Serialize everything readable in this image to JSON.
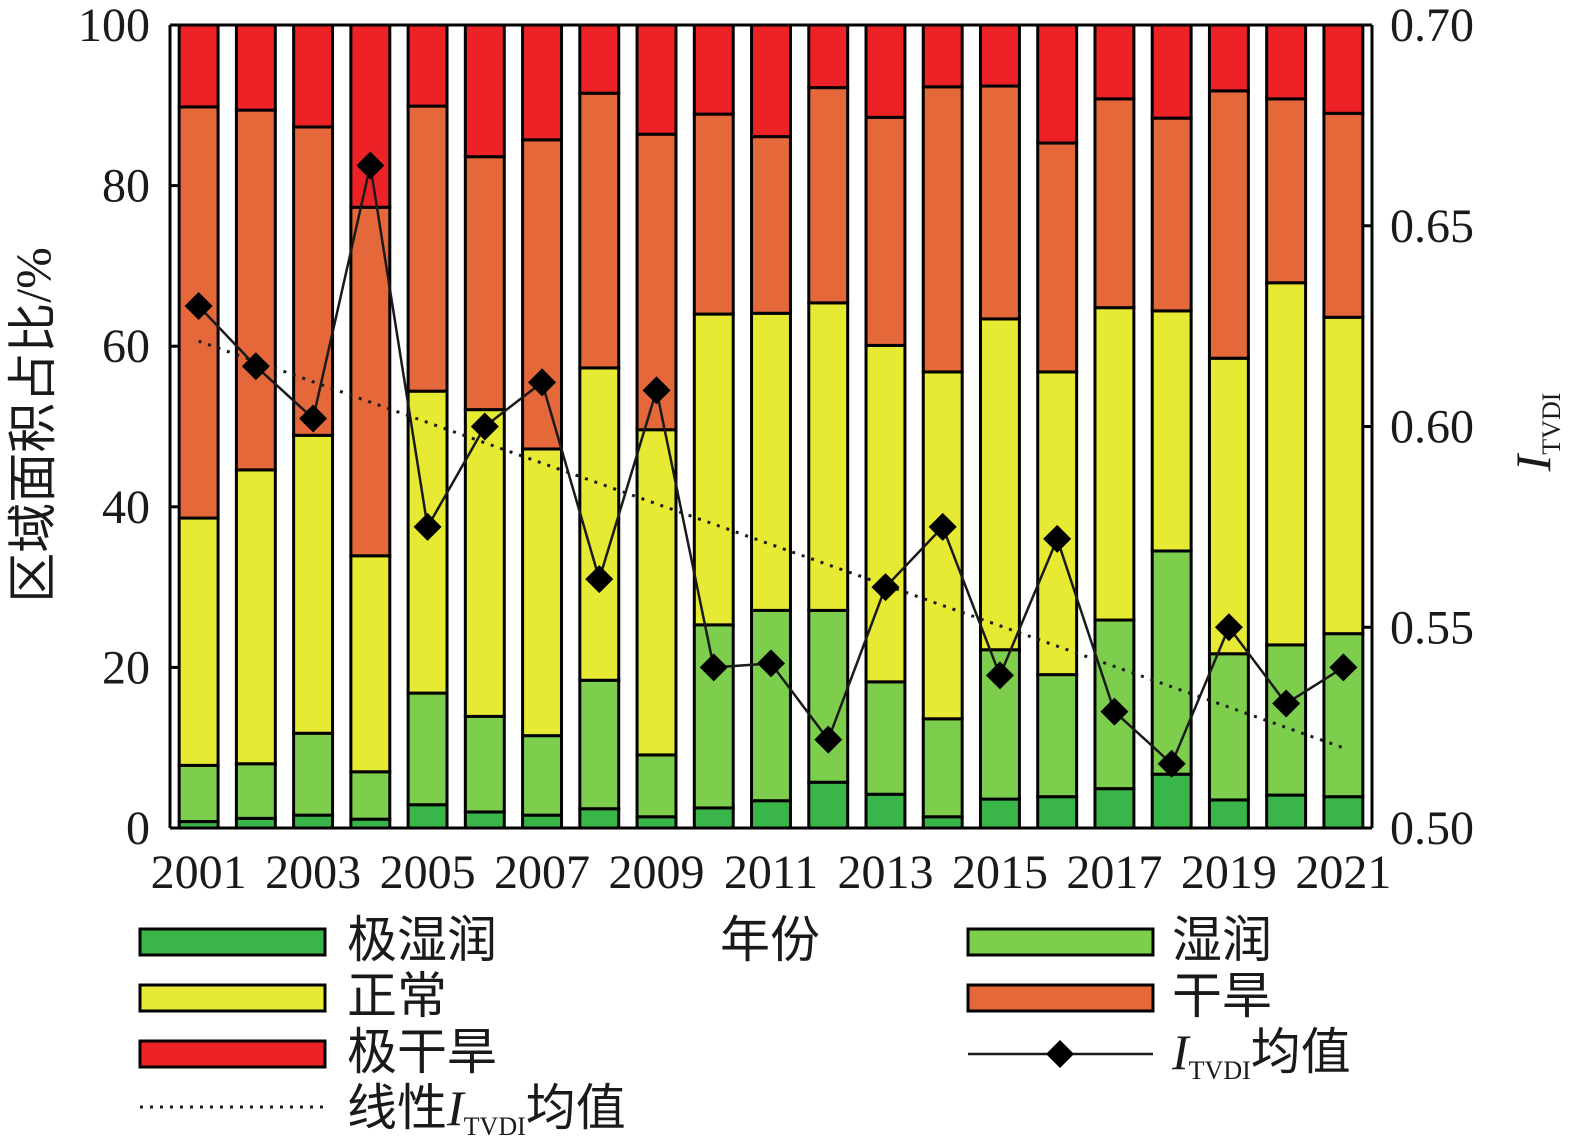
{
  "chart_data": {
    "type": "bar",
    "stacked": true,
    "x": [
      2001,
      2002,
      2003,
      2004,
      2005,
      2006,
      2007,
      2008,
      2009,
      2010,
      2011,
      2012,
      2013,
      2014,
      2015,
      2016,
      2017,
      2018,
      2019,
      2020,
      2021
    ],
    "xticks": [
      "2001",
      "2003",
      "2005",
      "2007",
      "2009",
      "2011",
      "2013",
      "2015",
      "2017",
      "2019",
      "2021"
    ],
    "xlabel": "年份",
    "ylabel": "区域面积占比/%",
    "ylim": [
      0,
      100
    ],
    "yticks": [
      "0",
      "20",
      "40",
      "60",
      "80",
      "100"
    ],
    "y2label": {
      "symbol": "I",
      "subscript": "TVDI"
    },
    "y2lim": [
      0.5,
      0.7
    ],
    "y2ticks": [
      "0.50",
      "0.55",
      "0.60",
      "0.65",
      "0.70"
    ],
    "series": [
      {
        "name": "极湿润",
        "color": "#3AB54A",
        "values": [
          0.8,
          1.2,
          1.6,
          1.1,
          2.9,
          2.0,
          1.6,
          2.4,
          1.4,
          2.5,
          3.4,
          5.7,
          4.2,
          1.4,
          3.6,
          3.9,
          4.9,
          6.7,
          3.5,
          4.1,
          3.9
        ]
      },
      {
        "name": "湿润",
        "color": "#7DCE4D",
        "values": [
          7.0,
          6.8,
          10.2,
          5.9,
          13.9,
          11.9,
          9.9,
          16.0,
          7.7,
          22.8,
          23.7,
          21.4,
          14.0,
          12.2,
          18.6,
          15.2,
          21.0,
          27.8,
          18.2,
          18.7,
          20.3
        ]
      },
      {
        "name": "正常",
        "color": "#E6EA33",
        "values": [
          30.8,
          36.6,
          37.1,
          26.9,
          37.6,
          38.2,
          35.7,
          38.9,
          40.5,
          38.7,
          37.0,
          38.3,
          41.9,
          43.2,
          41.2,
          37.7,
          38.9,
          29.9,
          36.8,
          45.1,
          39.4
        ]
      },
      {
        "name": "干旱",
        "color": "#E4683A",
        "values": [
          51.2,
          44.8,
          38.4,
          43.4,
          35.5,
          31.5,
          38.5,
          34.2,
          36.8,
          24.9,
          22.0,
          26.8,
          28.4,
          35.5,
          29.0,
          28.5,
          26.0,
          24.0,
          33.3,
          22.9,
          25.4
        ]
      },
      {
        "name": "极干旱",
        "color": "#ED2227",
        "values": [
          10.2,
          10.6,
          12.7,
          22.7,
          10.1,
          16.4,
          14.3,
          8.5,
          13.6,
          11.1,
          13.9,
          7.8,
          11.5,
          7.7,
          7.6,
          14.7,
          9.2,
          11.6,
          8.2,
          9.2,
          11.0
        ]
      }
    ],
    "line": {
      "type": "line",
      "name": {
        "symbol": "I",
        "subscript": "TVDI",
        "suffix": "均值"
      },
      "color": "#000000",
      "values": [
        0.63,
        0.615,
        0.602,
        0.665,
        0.575,
        0.6,
        0.611,
        0.562,
        0.609,
        0.54,
        0.541,
        0.522,
        0.56,
        0.575,
        0.538,
        0.572,
        0.529,
        0.516,
        0.55,
        0.531,
        0.54
      ]
    },
    "trend": {
      "name": {
        "prefix": "线性",
        "symbol": "I",
        "subscript": "TVDI",
        "suffix": "均值"
      },
      "color": "#000000"
    },
    "legend": {
      "placement": "bottom"
    },
    "grid": false
  }
}
